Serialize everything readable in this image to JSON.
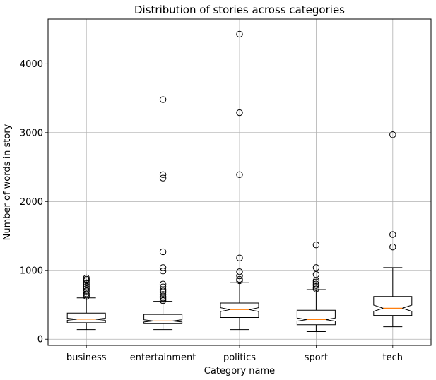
{
  "chart_data": {
    "type": "box",
    "title": "Distribution of stories across categories",
    "xlabel": "Category name",
    "ylabel": "Number of words in story",
    "ylim": [
      -90,
      4650
    ],
    "yticks": [
      0,
      1000,
      2000,
      3000,
      4000
    ],
    "grid": true,
    "notch": true,
    "categories": [
      "business",
      "entertainment",
      "politics",
      "sport",
      "tech"
    ],
    "series": [
      {
        "category": "business",
        "whisker_low": 140,
        "q1": 240,
        "median": 290,
        "q3": 380,
        "whisker_high": 600,
        "notch_low": 275,
        "notch_high": 305,
        "outliers": [
          620,
          640,
          660,
          700,
          730,
          760,
          790,
          820,
          850,
          870,
          890
        ]
      },
      {
        "category": "entertainment",
        "whisker_low": 140,
        "q1": 225,
        "median": 265,
        "q3": 360,
        "whisker_high": 550,
        "notch_low": 250,
        "notch_high": 282,
        "outliers": [
          560,
          580,
          600,
          620,
          650,
          680,
          700,
          720,
          760,
          800,
          990,
          1040,
          1270,
          2340,
          2390,
          3480
        ]
      },
      {
        "category": "politics",
        "whisker_low": 140,
        "q1": 315,
        "median": 430,
        "q3": 525,
        "whisker_high": 820,
        "notch_low": 402,
        "notch_high": 458,
        "outliers": [
          850,
          870,
          920,
          980,
          1180,
          2390,
          3290,
          4430
        ]
      },
      {
        "category": "sport",
        "whisker_low": 110,
        "q1": 210,
        "median": 285,
        "q3": 420,
        "whisker_high": 720,
        "notch_low": 262,
        "notch_high": 308,
        "outliers": [
          730,
          750,
          780,
          800,
          830,
          850,
          940,
          1040,
          1370
        ]
      },
      {
        "category": "tech",
        "whisker_low": 180,
        "q1": 345,
        "median": 450,
        "q3": 620,
        "whisker_high": 1040,
        "notch_low": 405,
        "notch_high": 495,
        "outliers": [
          1340,
          1520,
          2970
        ]
      }
    ],
    "colors": {
      "box": "#000000",
      "median": "#ff7f0e",
      "grid": "#b0b0b0",
      "outlier_edge": "#000000"
    }
  }
}
